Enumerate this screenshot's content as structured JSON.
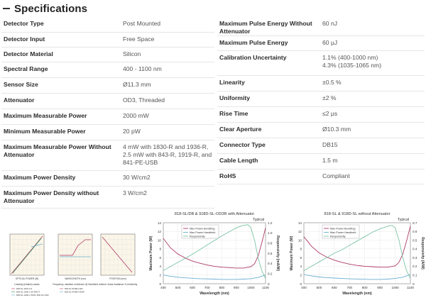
{
  "section": {
    "title": "Specifications"
  },
  "specs_left": [
    {
      "label": "Detector Type",
      "value": "Post Mounted"
    },
    {
      "label": "Detector Input",
      "value": "Free Space"
    },
    {
      "label": "Detector Material",
      "value": "Silicon"
    },
    {
      "label": "Spectral Range",
      "value": "400 - 1100 nm"
    },
    {
      "label": "Sensor Size",
      "value": "Ø11.3 mm"
    },
    {
      "label": "Attenuator",
      "value": "OD3, Threaded"
    },
    {
      "label": "Maximum Measurable Power",
      "value": "2000 mW"
    },
    {
      "label": "Minimum Measurable Power",
      "value": "20 pW"
    },
    {
      "label": "Maximum Measurable Power Without Attenuator",
      "value": "4 mW with 1830-R and 1936-R, 2.5 mW with 843-R, 1919-R, and 841-PE-USB"
    },
    {
      "label": "Maximum Power Density",
      "value": "30 W/cm2"
    },
    {
      "label": "Maximum Power Density without Attenuator",
      "value": "3 W/cm2"
    }
  ],
  "specs_right": [
    {
      "label": "Maximum Pulse Energy Without Attenuator",
      "value": "60 nJ"
    },
    {
      "label": "Maximum Pulse Energy",
      "value": "60 µJ"
    },
    {
      "label": "Calibration Uncertainty",
      "value": "1.1% (400-1000 nm)\n4.3% (1035-1065 nm)"
    },
    {
      "label": "Linearity",
      "value": "±0.5 %"
    },
    {
      "label": "Uniformity",
      "value": "±2 %"
    },
    {
      "label": "Rise Time",
      "value": "≤2 µs"
    },
    {
      "label": "Clear Aperture",
      "value": "Ø10.3 mm"
    },
    {
      "label": "Connector Type",
      "value": "DB15"
    },
    {
      "label": "Cable Length",
      "value": "1.5 m"
    },
    {
      "label": "RoHS",
      "value": "Compliant"
    }
  ],
  "chart_data": [
    {
      "type": "line",
      "title": "818-SL/DB & 918D-SL-OD3R with Attenuator",
      "corner_label": "Typical",
      "xlabel": "Wavelength (nm)",
      "ylabel": "Maximum Power (W)",
      "ylabel_right": "Responsivity (mA/W)",
      "x_ticks": [
        400,
        500,
        600,
        700,
        800,
        900,
        1000,
        1100
      ],
      "y_ticks": [
        0,
        2,
        4,
        6,
        8,
        10,
        12,
        14
      ],
      "y_right_ticks": [
        "0",
        "0.2",
        "0.4",
        "0.6",
        "0.8",
        "1.0",
        "1.2"
      ],
      "xlim": [
        400,
        1100
      ],
      "ylim": [
        0,
        14
      ],
      "y2lim": [
        0,
        1.2
      ],
      "legend": [
        "Max Power Bendfrog",
        "Max Power Handheld",
        "Responsivity"
      ],
      "series": [
        {
          "name": "Max Power Bendfrog",
          "color": "#b03a6a",
          "axis": "left",
          "x": [
            400,
            450,
            500,
            550,
            600,
            650,
            700,
            750,
            800,
            850,
            900,
            950,
            1000,
            1025,
            1050,
            1075,
            1100
          ],
          "values": [
            10.4,
            8.2,
            6.8,
            5.9,
            5.2,
            4.7,
            4.3,
            4.0,
            3.8,
            3.7,
            3.6,
            3.6,
            3.9,
            4.6,
            6.4,
            9.5,
            12.8
          ]
        },
        {
          "name": "Max Power Handheld",
          "color": "#6aaed0",
          "axis": "left",
          "x": [
            400,
            450,
            500,
            550,
            600,
            650,
            700,
            750,
            800,
            850,
            900,
            950,
            1000,
            1050,
            1100
          ],
          "values": [
            2.0,
            1.7,
            1.5,
            1.35,
            1.25,
            1.15,
            1.1,
            1.05,
            1.0,
            1.0,
            1.0,
            1.05,
            1.15,
            1.45,
            2.0
          ]
        },
        {
          "name": "Responsivity",
          "color": "#7cc4a4",
          "axis": "right",
          "x": [
            400,
            450,
            500,
            550,
            600,
            650,
            700,
            750,
            800,
            850,
            900,
            950,
            980,
            1000,
            1025,
            1050,
            1075,
            1100
          ],
          "values": [
            0.26,
            0.34,
            0.42,
            0.5,
            0.58,
            0.67,
            0.76,
            0.85,
            0.94,
            1.02,
            1.1,
            1.15,
            1.16,
            1.1,
            0.85,
            0.5,
            0.25,
            0.1
          ]
        }
      ]
    },
    {
      "type": "line",
      "title": "818-SL & 918D-SL without Attenuator",
      "corner_label": "Typical",
      "xlabel": "Wavelength (nm)",
      "ylabel": "Maximum Power (W)",
      "ylabel_right": "Responsivity (A/W)",
      "x_ticks": [
        400,
        500,
        600,
        700,
        800,
        900,
        1000,
        1100
      ],
      "y_ticks": [
        0,
        2,
        4,
        6,
        8,
        10,
        12,
        14
      ],
      "y_right_ticks": [
        "0",
        "0.1",
        "0.2",
        "0.3",
        "0.4",
        "0.5",
        "0.6",
        "0.7"
      ],
      "xlim": [
        400,
        1100
      ],
      "ylim": [
        0,
        14
      ],
      "y2lim": [
        0,
        0.7
      ],
      "legend": [
        "Max Power Bendfrog",
        "Max Power Handheld",
        "Responsivity"
      ],
      "series": [
        {
          "name": "Max Power Bendfrog",
          "color": "#b03a6a",
          "axis": "left",
          "x": [
            400,
            450,
            500,
            550,
            600,
            650,
            700,
            750,
            800,
            850,
            900,
            950,
            1000,
            1025,
            1050,
            1075,
            1100
          ],
          "values": [
            10.8,
            8.6,
            7.1,
            6.1,
            5.4,
            4.9,
            4.5,
            4.2,
            4.0,
            3.9,
            3.8,
            3.8,
            4.1,
            4.9,
            6.8,
            9.8,
            13.2
          ]
        },
        {
          "name": "Max Power Handheld",
          "color": "#6aaed0",
          "axis": "left",
          "x": [
            400,
            450,
            500,
            550,
            600,
            650,
            700,
            750,
            800,
            850,
            900,
            950,
            1000,
            1050,
            1100
          ],
          "values": [
            2.1,
            1.8,
            1.55,
            1.4,
            1.3,
            1.2,
            1.12,
            1.07,
            1.03,
            1.0,
            1.0,
            1.05,
            1.2,
            1.5,
            2.1
          ]
        },
        {
          "name": "Responsivity",
          "color": "#7cc4a4",
          "axis": "right",
          "x": [
            400,
            450,
            500,
            550,
            600,
            650,
            700,
            750,
            800,
            850,
            900,
            950,
            980,
            1000,
            1025,
            1050,
            1075,
            1100
          ],
          "values": [
            0.15,
            0.2,
            0.25,
            0.3,
            0.35,
            0.39,
            0.44,
            0.49,
            0.54,
            0.59,
            0.63,
            0.66,
            0.67,
            0.64,
            0.5,
            0.3,
            0.15,
            0.06
          ]
        }
      ]
    }
  ],
  "thumbnails": [
    {
      "caption": "Linearity (relative) values",
      "xlabel": "OPTICAL POWER (W)",
      "legend": [
        "818-SL 1100-2-3",
        "818-SL 1000-1 50 ROCT",
        "818-SL 1000-1 50/11 818-SL-OD3"
      ],
      "colors": [
        "#b03a6a",
        "#2f8f5b",
        "#6aaed0"
      ]
    },
    {
      "caption": "Frequency: variation of detector @ Handheld",
      "xlabel": "WAVELENGTH (nm)",
      "legend": [
        "818-SL IR-BE-OD3",
        "818-SL IR-BE-OD3R"
      ],
      "colors": [
        "#b03a6a",
        "#6aaed0"
      ]
    },
    {
      "caption": "Uniform: linear irradiance % Uniformity",
      "xlabel": "POSITION (mm)",
      "legend": [],
      "colors": [
        "#b03a6a"
      ]
    }
  ]
}
